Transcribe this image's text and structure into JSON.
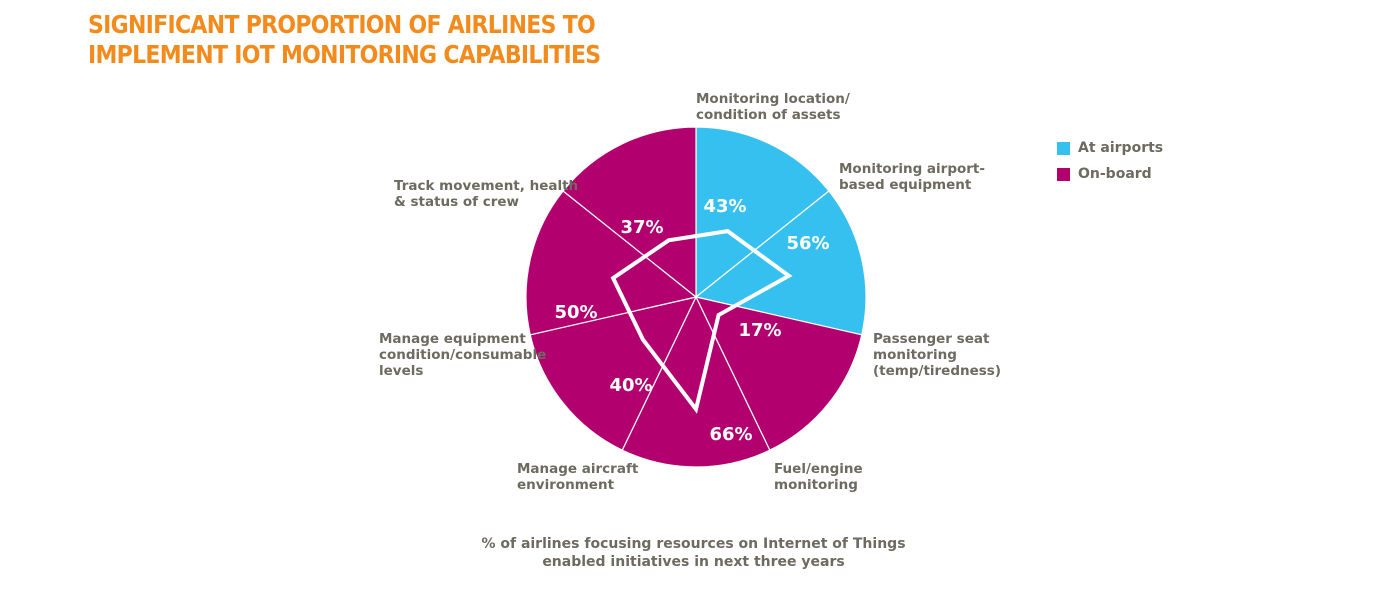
{
  "title": {
    "line1": "SIGNIFICANT PROPORTION OF AIRLINES TO",
    "line2": "IMPLEMENT IOT MONITORING CAPABILITIES"
  },
  "legend": [
    {
      "label": "At airports",
      "color": "#36c0f0"
    },
    {
      "label": "On-board",
      "color": "#b3006f"
    }
  ],
  "caption": {
    "line1": "% of airlines focusing resources on Internet of Things",
    "line2": "enabled initiatives in next three years"
  },
  "chart_data": {
    "type": "radar-pie",
    "categories": [
      {
        "lines": [
          "Monitoring location/",
          "condition of assets"
        ],
        "value": 43,
        "display": "43%",
        "group": "At airports"
      },
      {
        "lines": [
          "Monitoring airport-",
          "based equipment"
        ],
        "value": 56,
        "display": "56%",
        "group": "At airports"
      },
      {
        "lines": [
          "Passenger seat",
          "monitoring",
          "(temp/tiredness)"
        ],
        "value": 17,
        "display": "17%",
        "group": "On-board"
      },
      {
        "lines": [
          "Fuel/engine",
          "monitoring"
        ],
        "value": 66,
        "display": "66%",
        "group": "On-board"
      },
      {
        "lines": [
          "Manage aircraft",
          "environment"
        ],
        "value": 40,
        "display": "40%",
        "group": "On-board"
      },
      {
        "lines": [
          "Manage equipment",
          "condition/consumable",
          "levels"
        ],
        "value": 50,
        "display": "50%",
        "group": "On-board"
      },
      {
        "lines": [
          "Track movement, health",
          "& status of crew"
        ],
        "value": 37,
        "display": "37%",
        "group": "On-board"
      }
    ],
    "range": [
      0,
      100
    ],
    "colors": {
      "At airports": "#36c0f0",
      "On-board": "#b3006f",
      "outline": "#ffffff"
    },
    "legend_position": "top-right"
  }
}
